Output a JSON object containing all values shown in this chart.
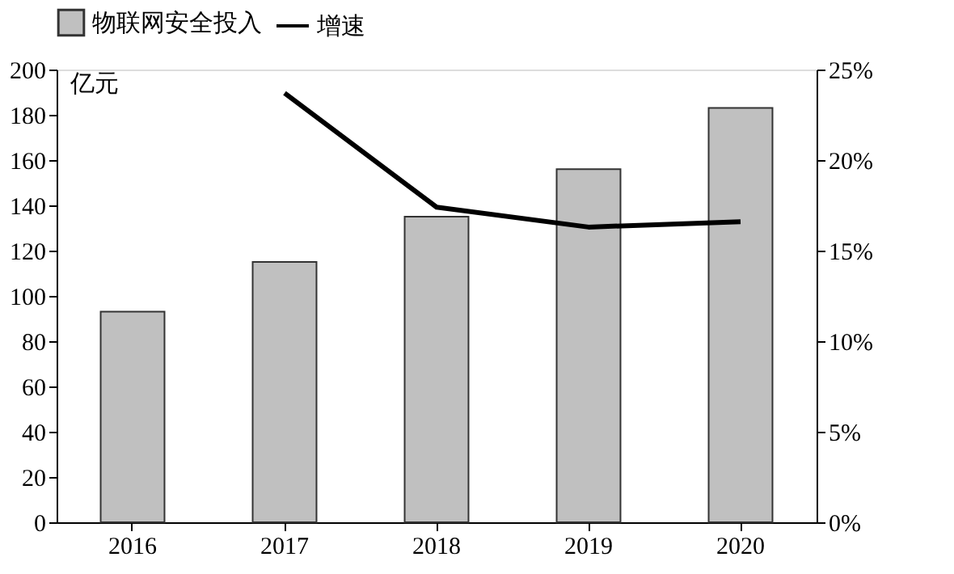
{
  "chart_data": {
    "type": "bar",
    "categories": [
      "2016",
      "2017",
      "2018",
      "2019",
      "2020"
    ],
    "ylabel": "亿元",
    "ylim": [
      0,
      200
    ],
    "yticks": [
      0,
      20,
      40,
      60,
      80,
      100,
      120,
      140,
      160,
      180,
      200
    ],
    "y2lim": [
      0,
      25
    ],
    "y2ticks": [
      {
        "value": 0,
        "label": "0%"
      },
      {
        "value": 5,
        "label": "5%"
      },
      {
        "value": 10,
        "label": "10%"
      },
      {
        "value": 15,
        "label": "15%"
      },
      {
        "value": 20,
        "label": "20%"
      },
      {
        "value": 25,
        "label": "25%"
      }
    ],
    "legend": "top",
    "grid": false,
    "series": [
      {
        "name": "物联网安全投入",
        "color": "#c0c0c0",
        "values": [
          93,
          115,
          135,
          156,
          183
        ]
      },
      {
        "name": "增速",
        "type": "line",
        "color": "#000000",
        "axis": "y2",
        "values": [
          null,
          23.7,
          17.4,
          16.3,
          16.6
        ]
      }
    ]
  }
}
